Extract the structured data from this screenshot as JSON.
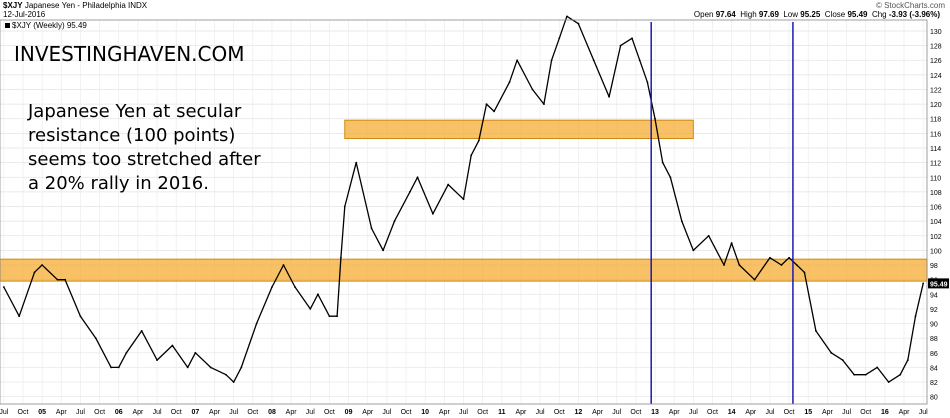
{
  "header": {
    "symbol": "$XJY",
    "name": "Japanese Yen - Philadelphia",
    "exchange": "INDX",
    "date": "12-Jul-2016",
    "copyright": "© StockCharts.com",
    "open_label": "Open",
    "open": "97.64",
    "high_label": "High",
    "high": "97.69",
    "low_label": "Low",
    "low": "95.25",
    "close_label": "Close",
    "close": "95.49",
    "chg_label": "Chg",
    "chg": "-3.93 (-3.96%)"
  },
  "legend": {
    "label": "$XJY (Weekly) 95.49"
  },
  "annotations": {
    "brand": "INVESTINGHAVEN.COM",
    "note_lines": [
      "Japanese Yen at secular",
      "resistance (100 points)",
      "seems too stretched after",
      "a 20% rally in 2016."
    ]
  },
  "chart_data": {
    "type": "line",
    "title": "$XJY Japanese Yen - Philadelphia INDX",
    "series": [
      {
        "name": "$XJY (Weekly)",
        "x": [
          2004.5,
          2004.7,
          2004.9,
          2005.0,
          2005.2,
          2005.3,
          2005.5,
          2005.7,
          2005.9,
          2006.0,
          2006.1,
          2006.3,
          2006.5,
          2006.7,
          2006.9,
          2007.0,
          2007.2,
          2007.4,
          2007.5,
          2007.6,
          2007.8,
          2008.0,
          2008.15,
          2008.3,
          2008.5,
          2008.6,
          2008.75,
          2008.85,
          2008.9,
          2008.95,
          2009.1,
          2009.3,
          2009.45,
          2009.6,
          2009.8,
          2009.9,
          2010.1,
          2010.3,
          2010.5,
          2010.6,
          2010.7,
          2010.8,
          2010.9,
          2011.1,
          2011.2,
          2011.4,
          2011.55,
          2011.65,
          2011.75,
          2011.85,
          2012.0,
          2012.2,
          2012.4,
          2012.55,
          2012.7,
          2012.8,
          2012.9,
          2013.0,
          2013.1,
          2013.2,
          2013.35,
          2013.5,
          2013.7,
          2013.9,
          2014.0,
          2014.1,
          2014.3,
          2014.5,
          2014.65,
          2014.75,
          2014.85,
          2014.95,
          2015.1,
          2015.3,
          2015.45,
          2015.6,
          2015.75,
          2015.9,
          2016.05,
          2016.2,
          2016.3,
          2016.4,
          2016.5
        ],
        "y": [
          95,
          91,
          97,
          98,
          96,
          96,
          91,
          88,
          84,
          84,
          86,
          89,
          85,
          87,
          84,
          86,
          84,
          83,
          82,
          84,
          90,
          95,
          98,
          95,
          92,
          94,
          91,
          91,
          99,
          106,
          112,
          103,
          100,
          104,
          108,
          110,
          105,
          109,
          107,
          113,
          115,
          120,
          119,
          123,
          126,
          122,
          120,
          126,
          129,
          132,
          131,
          126,
          121,
          128,
          129,
          126,
          123,
          118,
          112,
          110,
          104,
          100,
          102,
          98,
          101,
          98,
          96,
          99,
          98,
          99,
          98,
          97,
          89,
          86,
          85,
          83,
          83,
          84,
          82,
          83,
          85,
          91,
          95.49
        ]
      }
    ],
    "x_ticks": [
      {
        "x": 2004.5,
        "label": "Jul"
      },
      {
        "x": 2004.75,
        "label": "Oct"
      },
      {
        "x": 2005.0,
        "label": "05"
      },
      {
        "x": 2005.25,
        "label": "Apr"
      },
      {
        "x": 2005.5,
        "label": "Jul"
      },
      {
        "x": 2005.75,
        "label": "Oct"
      },
      {
        "x": 2006.0,
        "label": "06"
      },
      {
        "x": 2006.25,
        "label": "Apr"
      },
      {
        "x": 2006.5,
        "label": "Jul"
      },
      {
        "x": 2006.75,
        "label": "Oct"
      },
      {
        "x": 2007.0,
        "label": "07"
      },
      {
        "x": 2007.25,
        "label": "Apr"
      },
      {
        "x": 2007.5,
        "label": "Jul"
      },
      {
        "x": 2007.75,
        "label": "Oct"
      },
      {
        "x": 2008.0,
        "label": "08"
      },
      {
        "x": 2008.25,
        "label": "Apr"
      },
      {
        "x": 2008.5,
        "label": "Jul"
      },
      {
        "x": 2008.75,
        "label": "Oct"
      },
      {
        "x": 2009.0,
        "label": "09"
      },
      {
        "x": 2009.25,
        "label": "Apr"
      },
      {
        "x": 2009.5,
        "label": "Jul"
      },
      {
        "x": 2009.75,
        "label": "Oct"
      },
      {
        "x": 2010.0,
        "label": "10"
      },
      {
        "x": 2010.25,
        "label": "Apr"
      },
      {
        "x": 2010.5,
        "label": "Jul"
      },
      {
        "x": 2010.75,
        "label": "Oct"
      },
      {
        "x": 2011.0,
        "label": "11"
      },
      {
        "x": 2011.25,
        "label": "Apr"
      },
      {
        "x": 2011.5,
        "label": "Jul"
      },
      {
        "x": 2011.75,
        "label": "Oct"
      },
      {
        "x": 2012.0,
        "label": "12"
      },
      {
        "x": 2012.25,
        "label": "Apr"
      },
      {
        "x": 2012.5,
        "label": "Jul"
      },
      {
        "x": 2012.75,
        "label": "Oct"
      },
      {
        "x": 2013.0,
        "label": "13"
      },
      {
        "x": 2013.25,
        "label": "Apr"
      },
      {
        "x": 2013.5,
        "label": "Jul"
      },
      {
        "x": 2013.75,
        "label": "Oct"
      },
      {
        "x": 2014.0,
        "label": "14"
      },
      {
        "x": 2014.25,
        "label": "Apr"
      },
      {
        "x": 2014.5,
        "label": "Jul"
      },
      {
        "x": 2014.75,
        "label": "Oct"
      },
      {
        "x": 2015.0,
        "label": "15"
      },
      {
        "x": 2015.25,
        "label": "Apr"
      },
      {
        "x": 2015.5,
        "label": "Jul"
      },
      {
        "x": 2015.75,
        "label": "Oct"
      },
      {
        "x": 2016.0,
        "label": "16"
      },
      {
        "x": 2016.25,
        "label": "Apr"
      },
      {
        "x": 2016.5,
        "label": "Jul"
      }
    ],
    "xlim": [
      2004.45,
      2016.55
    ],
    "y_ticks": [
      80,
      82,
      84,
      86,
      88,
      90,
      92,
      94,
      96,
      98,
      100,
      102,
      104,
      106,
      108,
      110,
      112,
      114,
      116,
      118,
      120,
      122,
      124,
      126,
      128,
      130
    ],
    "ylim": [
      79,
      131.5
    ],
    "y_axis_side": "right",
    "last_value_label": "95.49",
    "grid": true,
    "highlight_bands": [
      {
        "y_from": 95.8,
        "y_to": 98.8,
        "x_from": 2004.45,
        "x_to": 2016.55,
        "color": "#f5a623"
      },
      {
        "y_from": 115.3,
        "y_to": 117.8,
        "x_from": 2008.95,
        "x_to": 2013.5,
        "color": "#f5a623"
      }
    ],
    "vertical_markers": [
      {
        "x": 2012.95,
        "color": "#1a1ab3"
      },
      {
        "x": 2014.8,
        "color": "#1a1ab3"
      }
    ]
  }
}
